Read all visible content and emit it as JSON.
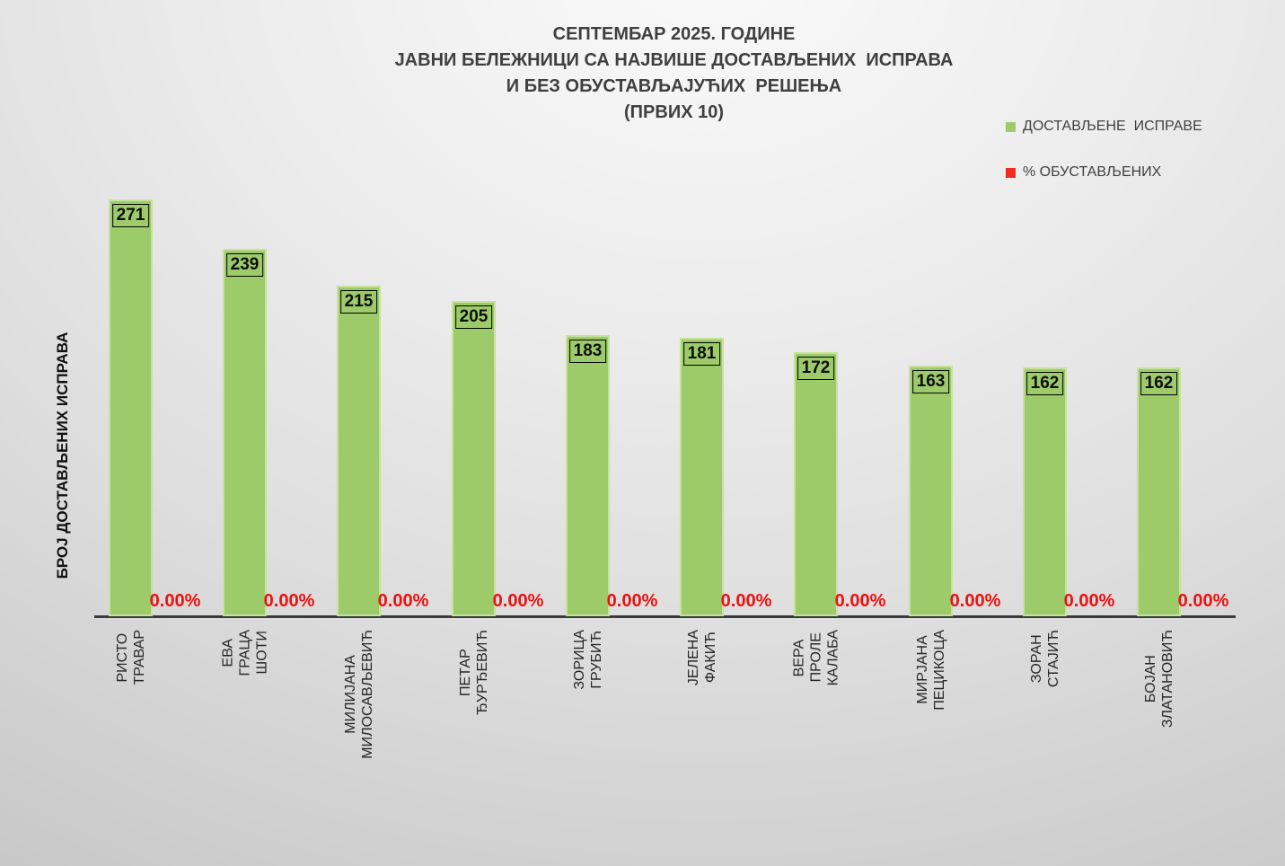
{
  "title": {
    "lines": [
      "СЕПТЕМБАР 2025. ГОДИНЕ",
      "ЈАВНИ БЕЛЕЖНИЦИ СА НАЈВИШЕ ДОСТАВЉЕНИХ  ИСПРАВА",
      "И БЕЗ ОБУСТАВЉАЈУЋИХ  РЕШЕЊА",
      "(ПРВИХ 10)"
    ]
  },
  "legend": {
    "items": [
      {
        "label": "ДОСТАВЉЕНЕ  ИСПРАВЕ",
        "marker_color": "#9dcb6a"
      },
      {
        "label": "% ОБУСТАВЉЕНИХ",
        "marker_color": "#ef2b23"
      }
    ]
  },
  "colors": {
    "bar_fill": "#9dcb6a",
    "bar_border": "#c6e29d",
    "pct_text": "#ee1111",
    "axis_line": "#3a3a3a",
    "title_text": "#3f3f3f"
  },
  "chart_data": {
    "type": "bar",
    "title": "СЕПТЕМБАР 2025. ГОДИНЕ — ЈАВНИ БЕЛЕЖНИЦИ СА НАЈВИШЕ ДОСТАВЉЕНИХ ИСПРАВА И БЕЗ ОБУСТАВЉАЈУЋИХ РЕШЕЊА (ПРВИХ 10)",
    "xlabel": "",
    "ylabel": "БРОЈ ДОСТАВЉЕНИХ ИСПРАВА",
    "ylim": [
      0,
      280
    ],
    "grid": false,
    "legend_position": "top-right",
    "categories": [
      "РИСТО ТРАВАР",
      "ЕВА ГРАЦА ШОТИ",
      "МИЛИЈАНА\nМИЛОСАВЉЕВИЋ",
      "ПЕТАР ЂУРЂЕВИЋ",
      "ЗОРИЦА ГРУБИЋ",
      "ЈЕЛЕНА ФАКИЋ",
      "ВЕРА ПРОЛЕ КАЛАБА",
      "МИРЈАНА ПЕЦИКОЦА",
      "ЗОРАН СТАЈИЋ",
      "БОЈАН ЗЛАТАНОВИЋ"
    ],
    "series": [
      {
        "name": "ДОСТАВЉЕНЕ ИСПРАВЕ",
        "type": "bar",
        "color": "#9dcb6a",
        "values": [
          271,
          239,
          215,
          205,
          183,
          181,
          172,
          163,
          162,
          162
        ]
      },
      {
        "name": "% ОБУСТАВЉЕНИХ",
        "type": "value-labels",
        "color": "#ee1111",
        "values": [
          0,
          0,
          0,
          0,
          0,
          0,
          0,
          0,
          0,
          0
        ],
        "labels": [
          "0.00%",
          "0.00%",
          "0.00%",
          "0.00%",
          "0.00%",
          "0.00%",
          "0.00%",
          "0.00%",
          "0.00%",
          "0.00%"
        ]
      }
    ]
  }
}
